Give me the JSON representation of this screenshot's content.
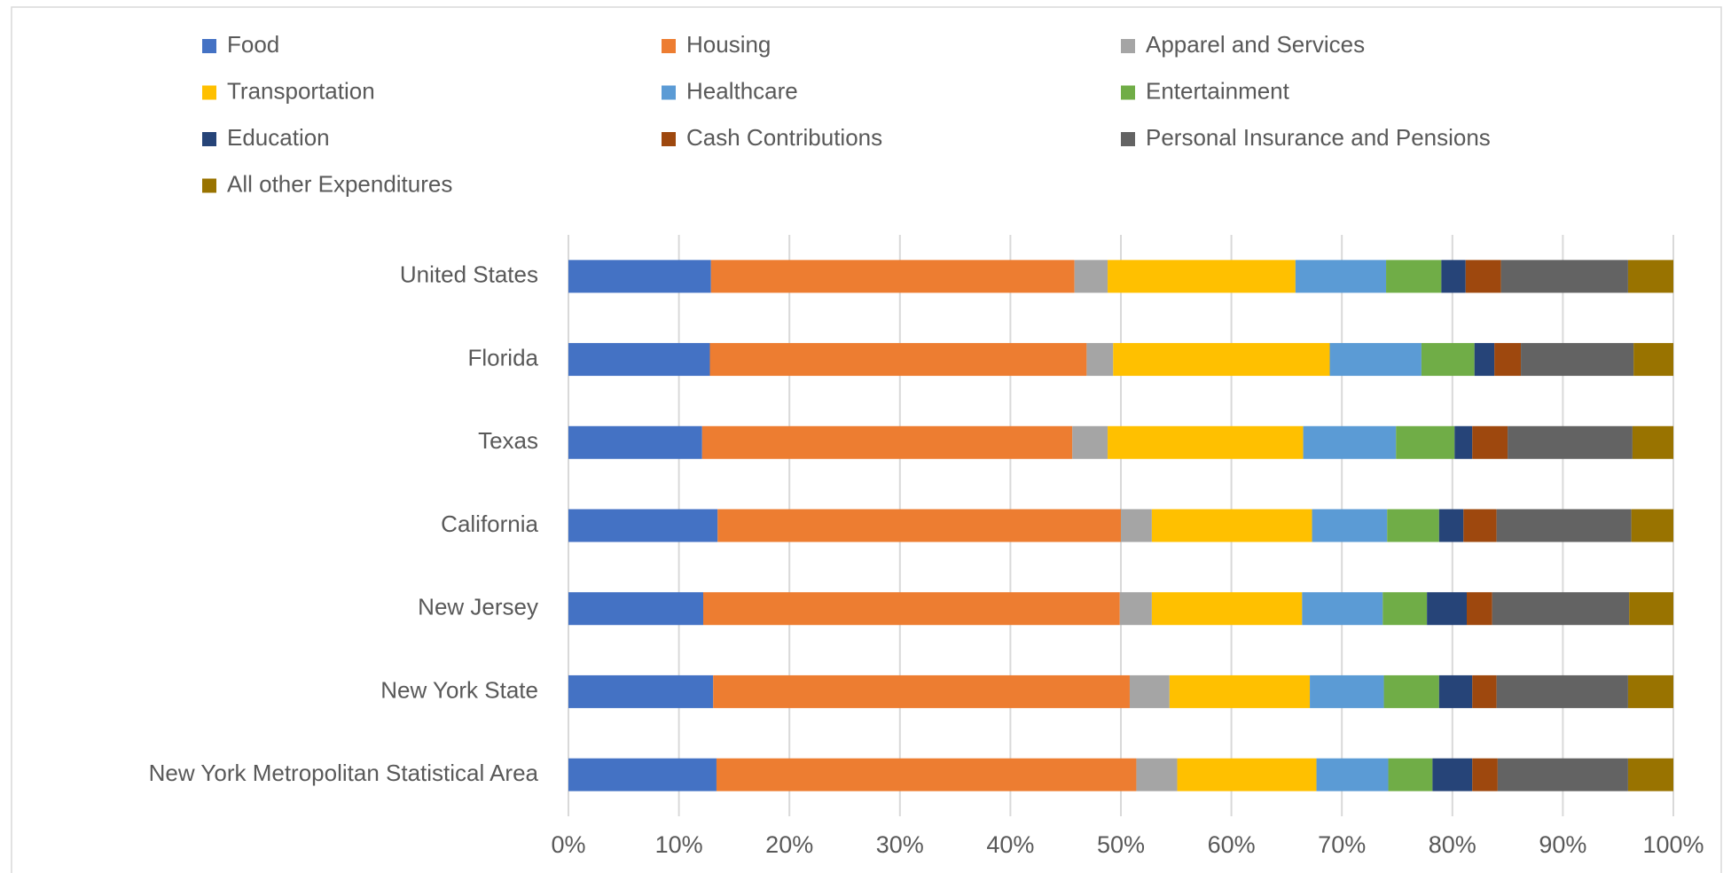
{
  "chart_data": {
    "type": "stacked-bar-horizontal",
    "categories": [
      "United States",
      "Florida",
      "Texas",
      "California",
      "New Jersey",
      "New York State",
      "New York Metropolitan Statistical Area"
    ],
    "series": [
      {
        "name": "Food",
        "color": "#4472c4",
        "values": [
          12.9,
          12.8,
          12.1,
          13.5,
          12.2,
          13.1,
          13.4
        ]
      },
      {
        "name": "Housing",
        "color": "#ed7d31",
        "values": [
          32.9,
          34.1,
          33.5,
          36.5,
          37.7,
          37.7,
          38.0
        ]
      },
      {
        "name": "Apparel and Services",
        "color": "#a5a5a5",
        "values": [
          3.0,
          2.4,
          3.2,
          2.8,
          2.9,
          3.6,
          3.7
        ]
      },
      {
        "name": "Transportation",
        "color": "#ffc000",
        "values": [
          17.0,
          19.6,
          17.7,
          14.5,
          13.6,
          12.7,
          12.6
        ]
      },
      {
        "name": "Healthcare",
        "color": "#5b9bd5",
        "values": [
          8.2,
          8.3,
          8.4,
          6.8,
          7.3,
          6.7,
          6.5
        ]
      },
      {
        "name": "Entertainment",
        "color": "#70ad47",
        "values": [
          5.0,
          4.8,
          5.3,
          4.7,
          4.0,
          5.0,
          4.0
        ]
      },
      {
        "name": "Education",
        "color": "#264478",
        "values": [
          2.2,
          1.8,
          1.6,
          2.2,
          3.6,
          3.0,
          3.6
        ]
      },
      {
        "name": "Cash Contributions",
        "color": "#9e480e",
        "values": [
          3.2,
          2.4,
          3.2,
          3.0,
          2.3,
          2.2,
          2.3
        ]
      },
      {
        "name": "Personal Insurance and Pensions",
        "color": "#636363",
        "values": [
          11.5,
          10.2,
          11.3,
          12.2,
          12.4,
          11.9,
          11.8
        ]
      },
      {
        "name": "All other Expenditures",
        "color": "#997300",
        "values": [
          4.1,
          3.6,
          3.7,
          3.8,
          4.0,
          4.1,
          4.1
        ]
      }
    ],
    "xlim": [
      0,
      100
    ],
    "xticks": [
      {
        "value": 0,
        "label": "0%"
      },
      {
        "value": 10,
        "label": "10%"
      },
      {
        "value": 20,
        "label": "20%"
      },
      {
        "value": 30,
        "label": "30%"
      },
      {
        "value": 40,
        "label": "40%"
      },
      {
        "value": 50,
        "label": "50%"
      },
      {
        "value": 60,
        "label": "60%"
      },
      {
        "value": 70,
        "label": "70%"
      },
      {
        "value": 80,
        "label": "80%"
      },
      {
        "value": 90,
        "label": "90%"
      },
      {
        "value": 100,
        "label": "100%"
      }
    ],
    "grid": true,
    "legend": "top"
  }
}
